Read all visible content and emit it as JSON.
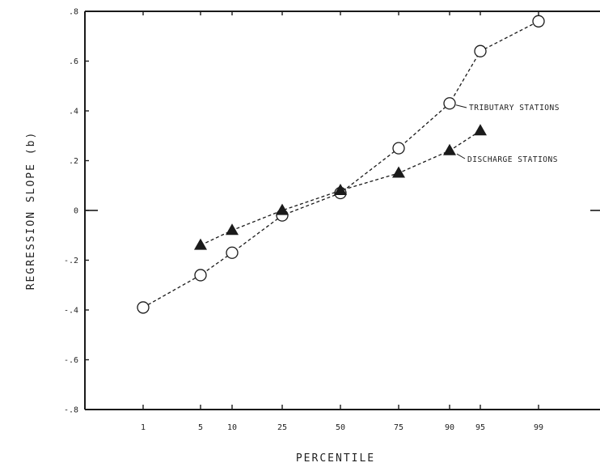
{
  "chart_data": {
    "type": "line",
    "title": "",
    "xlabel": "PERCENTILE",
    "ylabel": "REGRESSION SLOPE (b)",
    "x_ticks": [
      "1",
      "5",
      "10",
      "25",
      "50",
      "75",
      "90",
      "95",
      "99"
    ],
    "y_ticks": [
      ".8",
      ".6",
      ".4",
      ".2",
      "0",
      "-.2",
      "-.4",
      "-.6",
      "-.8"
    ],
    "y_tick_values": [
      0.8,
      0.6,
      0.4,
      0.2,
      0,
      -0.2,
      -0.4,
      -0.6,
      -0.8
    ],
    "ylim": [
      -0.8,
      0.8
    ],
    "grid": false,
    "series": [
      {
        "name": "TRIBUTARY STATIONS",
        "marker": "open-circle",
        "line_style": "dashed",
        "x": [
          "1",
          "5",
          "10",
          "25",
          "50",
          "75",
          "90",
          "95",
          "99"
        ],
        "values": [
          -0.39,
          -0.26,
          -0.17,
          -0.02,
          0.07,
          0.25,
          0.43,
          0.64,
          0.76
        ]
      },
      {
        "name": "DISCHARGE STATIONS",
        "marker": "filled-triangle",
        "line_style": "dashed",
        "x": [
          "5",
          "10",
          "25",
          "50",
          "75",
          "90",
          "95"
        ],
        "values": [
          -0.14,
          -0.08,
          0.0,
          0.08,
          0.15,
          0.24,
          0.32
        ]
      }
    ],
    "annotations": [
      "TRIBUTARY STATIONS",
      "DISCHARGE STATIONS"
    ],
    "colors": {
      "ink": "#1a1a1a",
      "background": "#ffffff"
    }
  }
}
